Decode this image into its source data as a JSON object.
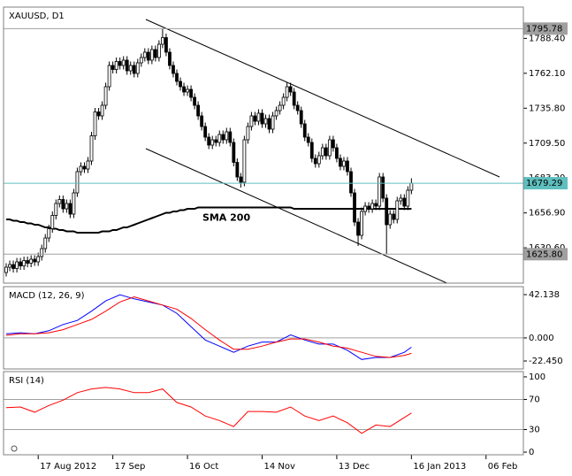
{
  "chart_data": [
    {
      "type": "candlestick",
      "title": "XAUUSD, D1",
      "xlim": [
        -0.75,
        145.5
      ],
      "xticks": [
        {
          "value": 9,
          "label": "17 Aug 2012"
        },
        {
          "value": 30,
          "label": "17 Sep"
        },
        {
          "value": 51,
          "label": "16 Oct"
        },
        {
          "value": 72,
          "label": "14 Nov"
        },
        {
          "value": 93,
          "label": "13 Dec"
        },
        {
          "value": 114,
          "label": "16 Jan 2013"
        },
        {
          "value": 135,
          "label": "06 Feb"
        }
      ],
      "ylim": [
        1604,
        1812
      ],
      "yticks": [
        {
          "value": 1788.4,
          "label": "1788.40"
        },
        {
          "value": 1762.1,
          "label": "1762.10"
        },
        {
          "value": 1735.8,
          "label": "1735.80"
        },
        {
          "value": 1709.5,
          "label": "1709.50"
        },
        {
          "value": 1683.2,
          "label": "1683.20"
        },
        {
          "value": 1656.9,
          "label": "1656.90"
        },
        {
          "value": 1630.6,
          "label": "1630.60"
        }
      ],
      "hlines": [
        {
          "value": 1795.78,
          "color": "#a0a0a0"
        },
        {
          "value": 1679.29,
          "color": "#5fbfbf"
        },
        {
          "value": 1625.8,
          "label": "1625.80",
          "color": "#a0a0a0"
        }
      ],
      "up_color": "#ffffff",
      "down_color": "#000000",
      "open": [
        1612,
        1616,
        1618,
        1615,
        1620,
        1617,
        1621,
        1619,
        1622,
        1620,
        1624,
        1630,
        1638,
        1645,
        1655,
        1664,
        1667,
        1660,
        1664,
        1656,
        1672,
        1688,
        1692,
        1690,
        1696,
        1715,
        1733,
        1730,
        1738,
        1752,
        1768,
        1765,
        1771,
        1768,
        1772,
        1764,
        1768,
        1762,
        1770,
        1774,
        1778,
        1772,
        1780,
        1774,
        1784,
        1789,
        1778,
        1768,
        1762,
        1756,
        1752,
        1748,
        1750,
        1744,
        1738,
        1730,
        1722,
        1714,
        1708,
        1712,
        1710,
        1716,
        1712,
        1718,
        1710,
        1695,
        1684,
        1680,
        1712,
        1722,
        1730,
        1726,
        1732,
        1724,
        1728,
        1720,
        1730,
        1734,
        1738,
        1744,
        1752,
        1748,
        1738,
        1734,
        1724,
        1714,
        1710,
        1698,
        1694,
        1700,
        1706,
        1700,
        1712,
        1706,
        1698,
        1692,
        1696,
        1688,
        1672,
        1650,
        1640,
        1658,
        1662,
        1660,
        1664,
        1662,
        1684,
        1668,
        1648,
        1656,
        1652,
        1666,
        1668,
        1662,
        1674
      ],
      "high": [
        1619,
        1621,
        1621,
        1623,
        1623,
        1624,
        1624,
        1625,
        1625,
        1627,
        1633,
        1641,
        1648,
        1658,
        1667,
        1670,
        1670,
        1667,
        1667,
        1675,
        1691,
        1695,
        1695,
        1699,
        1718,
        1736,
        1736,
        1741,
        1755,
        1771,
        1771,
        1774,
        1774,
        1775,
        1775,
        1771,
        1771,
        1773,
        1777,
        1781,
        1781,
        1783,
        1783,
        1787,
        1795.78,
        1792,
        1781,
        1771,
        1765,
        1759,
        1755,
        1753,
        1753,
        1747,
        1741,
        1733,
        1725,
        1717,
        1715,
        1715,
        1719,
        1719,
        1721,
        1721,
        1713,
        1698,
        1687,
        1715,
        1725,
        1733,
        1733,
        1735,
        1735,
        1731,
        1731,
        1733,
        1737,
        1741,
        1747,
        1755,
        1755,
        1751,
        1741,
        1737,
        1727,
        1717,
        1713,
        1701,
        1703,
        1709,
        1709,
        1715,
        1715,
        1709,
        1701,
        1699,
        1699,
        1691,
        1675,
        1653,
        1661,
        1665,
        1665,
        1667,
        1667,
        1687,
        1687,
        1671,
        1659,
        1659,
        1669,
        1671,
        1671,
        1677,
        1683
      ],
      "low": [
        1609,
        1613,
        1612,
        1612,
        1614,
        1614,
        1616,
        1616,
        1617,
        1617,
        1621,
        1627,
        1635,
        1642,
        1652,
        1661,
        1657,
        1657,
        1653,
        1653,
        1669,
        1685,
        1687,
        1687,
        1693,
        1712,
        1727,
        1727,
        1735,
        1749,
        1762,
        1762,
        1765,
        1765,
        1761,
        1761,
        1759,
        1759,
        1767,
        1771,
        1769,
        1769,
        1771,
        1771,
        1781,
        1775,
        1765,
        1759,
        1753,
        1749,
        1745,
        1745,
        1741,
        1735,
        1727,
        1719,
        1711,
        1705,
        1705,
        1707,
        1707,
        1709,
        1709,
        1707,
        1692,
        1681,
        1676,
        1677,
        1709,
        1719,
        1723,
        1723,
        1721,
        1721,
        1717,
        1717,
        1727,
        1731,
        1735,
        1741,
        1745,
        1735,
        1731,
        1721,
        1711,
        1707,
        1695,
        1691,
        1691,
        1697,
        1697,
        1697,
        1703,
        1695,
        1689,
        1689,
        1685,
        1669,
        1647,
        1632,
        1637,
        1655,
        1657,
        1657,
        1659,
        1659,
        1665,
        1625.8,
        1645,
        1649,
        1649,
        1663,
        1659,
        1659,
        1671
      ],
      "close": [
        1616,
        1618,
        1615,
        1620,
        1617,
        1621,
        1619,
        1622,
        1620,
        1624,
        1630,
        1638,
        1645,
        1655,
        1664,
        1667,
        1660,
        1664,
        1656,
        1672,
        1688,
        1692,
        1690,
        1696,
        1715,
        1733,
        1730,
        1738,
        1752,
        1768,
        1765,
        1771,
        1768,
        1772,
        1764,
        1768,
        1762,
        1770,
        1774,
        1778,
        1772,
        1780,
        1774,
        1784,
        1789,
        1778,
        1768,
        1762,
        1756,
        1752,
        1748,
        1750,
        1744,
        1738,
        1730,
        1722,
        1714,
        1708,
        1712,
        1710,
        1716,
        1712,
        1718,
        1710,
        1695,
        1684,
        1680,
        1712,
        1722,
        1730,
        1726,
        1732,
        1724,
        1728,
        1720,
        1730,
        1734,
        1738,
        1744,
        1752,
        1748,
        1738,
        1734,
        1724,
        1714,
        1710,
        1698,
        1694,
        1700,
        1706,
        1700,
        1712,
        1706,
        1698,
        1692,
        1696,
        1688,
        1672,
        1650,
        1640,
        1658,
        1662,
        1660,
        1664,
        1662,
        1684,
        1668,
        1648,
        1656,
        1652,
        1666,
        1668,
        1662,
        1674,
        1679.29
      ],
      "series": [
        {
          "name": "SMA 200",
          "color": "#000000",
          "values": [
            1652,
            1652,
            1651,
            1651,
            1650,
            1650,
            1649,
            1649,
            1648,
            1648,
            1647,
            1646,
            1646,
            1645,
            1645,
            1644,
            1644,
            1643,
            1643,
            1643,
            1642,
            1642,
            1642,
            1642,
            1642,
            1642,
            1642,
            1643,
            1643,
            1643,
            1644,
            1644,
            1645,
            1646,
            1646,
            1647,
            1648,
            1649,
            1650,
            1651,
            1652,
            1653,
            1654,
            1655,
            1656,
            1657,
            1657,
            1658,
            1658,
            1659,
            1659,
            1660,
            1660,
            1660,
            1661,
            1661,
            1661,
            1661,
            1661,
            1661,
            1661,
            1661,
            1661,
            1661,
            1661,
            1661,
            1661,
            1661,
            1661,
            1661,
            1661,
            1661,
            1661,
            1661,
            1661,
            1661,
            1661,
            1661,
            1661,
            1661,
            1661,
            1660,
            1660,
            1660,
            1660,
            1660,
            1660,
            1660,
            1660,
            1660,
            1660,
            1660,
            1660,
            1660,
            1660,
            1660,
            1660,
            1660,
            1660,
            1660,
            1660,
            1660,
            1660,
            1660,
            1660,
            1660,
            1660,
            1660,
            1660,
            1660,
            1660,
            1660,
            1660,
            1660,
            1660
          ]
        }
      ]
    },
    {
      "type": "line",
      "title": "MACD (12, 26, 9)",
      "xlim": [
        -0.75,
        145.5
      ],
      "x": [
        0,
        4,
        8,
        12,
        16,
        20,
        24,
        28,
        32,
        36,
        40,
        44,
        48,
        52,
        56,
        60,
        64,
        68,
        72,
        76,
        80,
        84,
        88,
        92,
        96,
        100,
        104,
        108,
        112,
        114
      ],
      "ylim": [
        -30.2,
        49.9
      ],
      "yticks": [
        42.138,
        {
          "value": 0,
          "label": "0.000"
        },
        {
          "value": -22.45,
          "label": "-22.450"
        }
      ],
      "levels": [
        0
      ],
      "series": [
        {
          "color": "#0000ff",
          "values": [
            4,
            5,
            4,
            7,
            13,
            17,
            26,
            36,
            42,
            38,
            35,
            32,
            24,
            11,
            -2,
            -8,
            -14,
            -8,
            -4,
            -4,
            3,
            -2,
            -6,
            -6,
            -12,
            -21,
            -19,
            -19,
            -14,
            -9
          ]
        },
        {
          "color": "#ff0000",
          "values": [
            2.5,
            4,
            4,
            5,
            8,
            13,
            18,
            26,
            35,
            40,
            36,
            32,
            28,
            19,
            8,
            -2,
            -11,
            -11,
            -8,
            -4,
            -1,
            -1,
            -4,
            -8,
            -10,
            -14,
            -18,
            -19,
            -17,
            -15
          ]
        }
      ]
    },
    {
      "type": "line",
      "title": "RSI (14)",
      "xlim": [
        -0.75,
        145.5
      ],
      "x": [
        0,
        4,
        8,
        12,
        16,
        20,
        24,
        28,
        32,
        36,
        40,
        44,
        48,
        52,
        56,
        60,
        64,
        68,
        72,
        76,
        80,
        84,
        88,
        92,
        96,
        100,
        104,
        108,
        112,
        114
      ],
      "ylim": [
        -3.5,
        107
      ],
      "yticks": [
        100,
        70,
        30,
        0
      ],
      "levels": [
        70,
        30
      ],
      "series": [
        {
          "color": "#ff0000",
          "values": [
            59,
            60,
            53,
            62,
            69,
            79,
            84,
            86,
            84,
            79,
            79,
            84,
            66,
            60,
            48,
            42,
            34,
            54,
            54,
            53,
            60,
            48,
            42,
            48,
            39,
            25,
            36,
            34,
            46,
            52
          ]
        }
      ]
    }
  ]
}
